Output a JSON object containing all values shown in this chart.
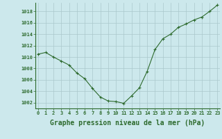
{
  "x": [
    0,
    1,
    2,
    3,
    4,
    5,
    6,
    7,
    8,
    9,
    10,
    11,
    12,
    13,
    14,
    15,
    16,
    17,
    18,
    19,
    20,
    21,
    22,
    23
  ],
  "y": [
    1010.5,
    1010.8,
    1010.0,
    1009.3,
    1008.6,
    1007.2,
    1006.2,
    1004.5,
    1003.0,
    1002.3,
    1002.2,
    1001.9,
    1003.2,
    1004.6,
    1007.5,
    1011.3,
    1013.2,
    1014.0,
    1015.2,
    1015.8,
    1016.5,
    1017.0,
    1018.0,
    1019.1
  ],
  "line_color": "#2d6a2d",
  "marker": "P",
  "marker_size": 2.5,
  "bg_color": "#cce8ec",
  "grid_color": "#aac8cc",
  "xlabel": "Graphe pression niveau de la mer (hPa)",
  "xlabel_fontsize": 7,
  "ylabel_ticks": [
    1002,
    1004,
    1006,
    1008,
    1010,
    1012,
    1014,
    1016,
    1018
  ],
  "ylim": [
    1001,
    1019.5
  ],
  "xlim": [
    -0.3,
    23.3
  ],
  "xtick_labels": [
    "0",
    "1",
    "2",
    "3",
    "4",
    "5",
    "6",
    "7",
    "8",
    "9",
    "10",
    "11",
    "12",
    "13",
    "14",
    "15",
    "16",
    "17",
    "18",
    "19",
    "20",
    "21",
    "22",
    "23"
  ],
  "tick_color": "#2d6a2d",
  "tick_fontsize": 5.0,
  "ylabel_fontsize": 5.0
}
